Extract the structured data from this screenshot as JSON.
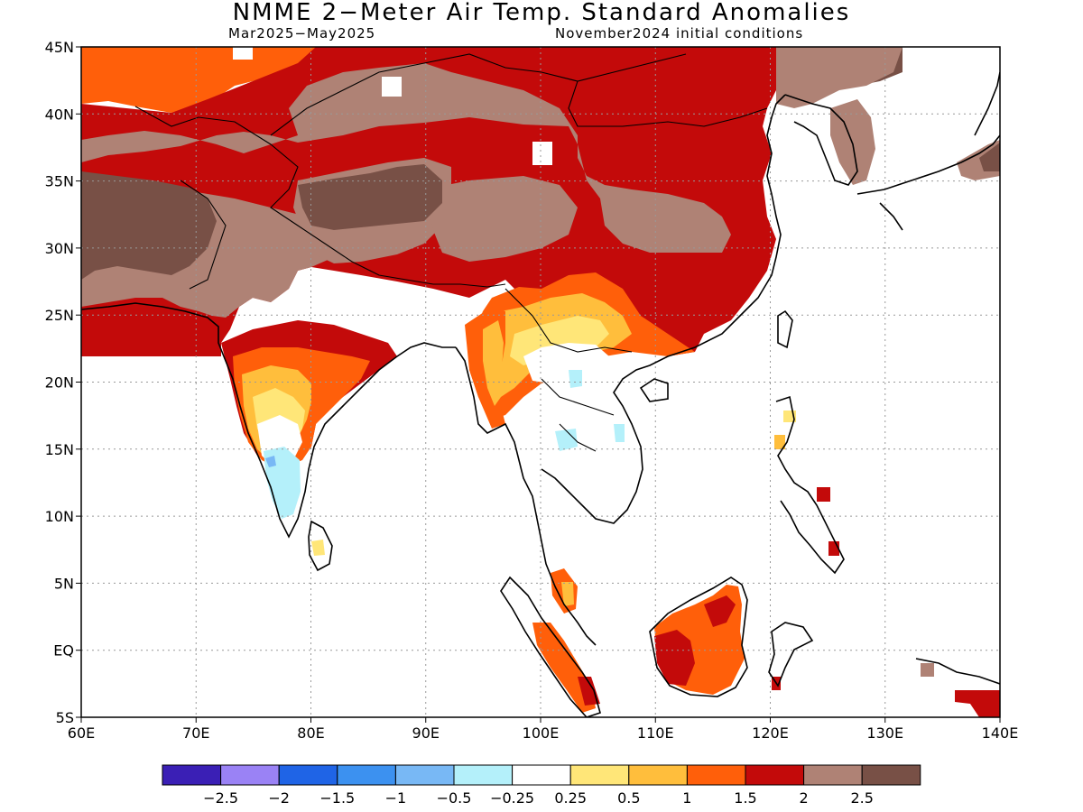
{
  "header": {
    "title": "NMME 2−Meter Air Temp. Standard Anomalies",
    "period": "Mar2025−May2025",
    "init": "November2024 initial conditions"
  },
  "map": {
    "lon_range": [
      60,
      140
    ],
    "lat_range": [
      -5,
      45
    ],
    "lon_ticks": [
      "60E",
      "70E",
      "80E",
      "90E",
      "100E",
      "110E",
      "120E",
      "130E",
      "140E"
    ],
    "lat_ticks": [
      "5S",
      "EQ",
      "5N",
      "10N",
      "15N",
      "20N",
      "25N",
      "30N",
      "35N",
      "40N",
      "45N"
    ]
  },
  "legend": {
    "colors": [
      "#3a1fb5",
      "#9a82f5",
      "#1f64e6",
      "#3c91f0",
      "#78b8f5",
      "#b4f0fa",
      "#ffffff",
      "#ffe678",
      "#ffbe3c",
      "#ff5f0a",
      "#c30a0a",
      "#af8275",
      "#785046"
    ],
    "labels": [
      "−2.5",
      "−2",
      "−1.5",
      "−1",
      "−0.5",
      "−0.25",
      "0.25",
      "0.5",
      "1",
      "1.5",
      "2",
      "2.5"
    ]
  },
  "colors": {
    "land_outline": "#000000",
    "grid": "#999999"
  }
}
